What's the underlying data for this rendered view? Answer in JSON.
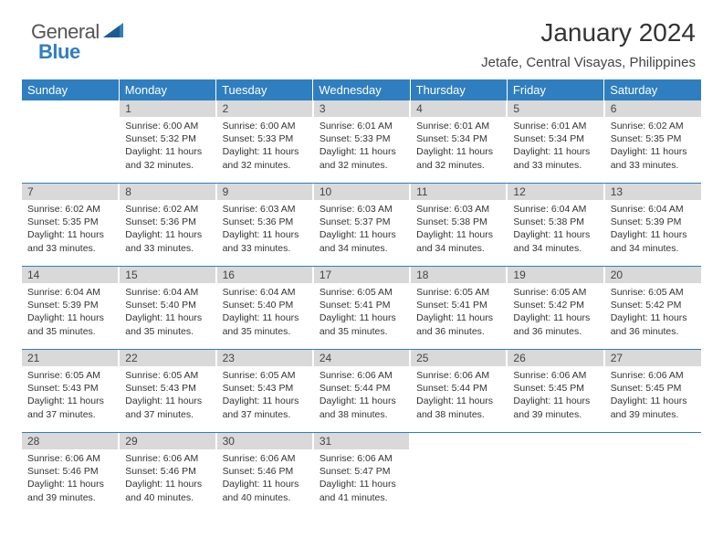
{
  "logo": {
    "word1": "General",
    "word2": "Blue"
  },
  "header": {
    "title": "January 2024",
    "subtitle": "Jetafe, Central Visayas, Philippines"
  },
  "colors": {
    "brand": "#2f7ec0",
    "day_bg": "#d9d9d9",
    "text": "#333333",
    "background": "#ffffff"
  },
  "day_names": [
    "Sunday",
    "Monday",
    "Tuesday",
    "Wednesday",
    "Thursday",
    "Friday",
    "Saturday"
  ],
  "weeks": [
    [
      {
        "n": "",
        "lines": []
      },
      {
        "n": "1",
        "lines": [
          "Sunrise: 6:00 AM",
          "Sunset: 5:32 PM",
          "Daylight: 11 hours and 32 minutes."
        ]
      },
      {
        "n": "2",
        "lines": [
          "Sunrise: 6:00 AM",
          "Sunset: 5:33 PM",
          "Daylight: 11 hours and 32 minutes."
        ]
      },
      {
        "n": "3",
        "lines": [
          "Sunrise: 6:01 AM",
          "Sunset: 5:33 PM",
          "Daylight: 11 hours and 32 minutes."
        ]
      },
      {
        "n": "4",
        "lines": [
          "Sunrise: 6:01 AM",
          "Sunset: 5:34 PM",
          "Daylight: 11 hours and 32 minutes."
        ]
      },
      {
        "n": "5",
        "lines": [
          "Sunrise: 6:01 AM",
          "Sunset: 5:34 PM",
          "Daylight: 11 hours and 33 minutes."
        ]
      },
      {
        "n": "6",
        "lines": [
          "Sunrise: 6:02 AM",
          "Sunset: 5:35 PM",
          "Daylight: 11 hours and 33 minutes."
        ]
      }
    ],
    [
      {
        "n": "7",
        "lines": [
          "Sunrise: 6:02 AM",
          "Sunset: 5:35 PM",
          "Daylight: 11 hours and 33 minutes."
        ]
      },
      {
        "n": "8",
        "lines": [
          "Sunrise: 6:02 AM",
          "Sunset: 5:36 PM",
          "Daylight: 11 hours and 33 minutes."
        ]
      },
      {
        "n": "9",
        "lines": [
          "Sunrise: 6:03 AM",
          "Sunset: 5:36 PM",
          "Daylight: 11 hours and 33 minutes."
        ]
      },
      {
        "n": "10",
        "lines": [
          "Sunrise: 6:03 AM",
          "Sunset: 5:37 PM",
          "Daylight: 11 hours and 34 minutes."
        ]
      },
      {
        "n": "11",
        "lines": [
          "Sunrise: 6:03 AM",
          "Sunset: 5:38 PM",
          "Daylight: 11 hours and 34 minutes."
        ]
      },
      {
        "n": "12",
        "lines": [
          "Sunrise: 6:04 AM",
          "Sunset: 5:38 PM",
          "Daylight: 11 hours and 34 minutes."
        ]
      },
      {
        "n": "13",
        "lines": [
          "Sunrise: 6:04 AM",
          "Sunset: 5:39 PM",
          "Daylight: 11 hours and 34 minutes."
        ]
      }
    ],
    [
      {
        "n": "14",
        "lines": [
          "Sunrise: 6:04 AM",
          "Sunset: 5:39 PM",
          "Daylight: 11 hours and 35 minutes."
        ]
      },
      {
        "n": "15",
        "lines": [
          "Sunrise: 6:04 AM",
          "Sunset: 5:40 PM",
          "Daylight: 11 hours and 35 minutes."
        ]
      },
      {
        "n": "16",
        "lines": [
          "Sunrise: 6:04 AM",
          "Sunset: 5:40 PM",
          "Daylight: 11 hours and 35 minutes."
        ]
      },
      {
        "n": "17",
        "lines": [
          "Sunrise: 6:05 AM",
          "Sunset: 5:41 PM",
          "Daylight: 11 hours and 35 minutes."
        ]
      },
      {
        "n": "18",
        "lines": [
          "Sunrise: 6:05 AM",
          "Sunset: 5:41 PM",
          "Daylight: 11 hours and 36 minutes."
        ]
      },
      {
        "n": "19",
        "lines": [
          "Sunrise: 6:05 AM",
          "Sunset: 5:42 PM",
          "Daylight: 11 hours and 36 minutes."
        ]
      },
      {
        "n": "20",
        "lines": [
          "Sunrise: 6:05 AM",
          "Sunset: 5:42 PM",
          "Daylight: 11 hours and 36 minutes."
        ]
      }
    ],
    [
      {
        "n": "21",
        "lines": [
          "Sunrise: 6:05 AM",
          "Sunset: 5:43 PM",
          "Daylight: 11 hours and 37 minutes."
        ]
      },
      {
        "n": "22",
        "lines": [
          "Sunrise: 6:05 AM",
          "Sunset: 5:43 PM",
          "Daylight: 11 hours and 37 minutes."
        ]
      },
      {
        "n": "23",
        "lines": [
          "Sunrise: 6:05 AM",
          "Sunset: 5:43 PM",
          "Daylight: 11 hours and 37 minutes."
        ]
      },
      {
        "n": "24",
        "lines": [
          "Sunrise: 6:06 AM",
          "Sunset: 5:44 PM",
          "Daylight: 11 hours and 38 minutes."
        ]
      },
      {
        "n": "25",
        "lines": [
          "Sunrise: 6:06 AM",
          "Sunset: 5:44 PM",
          "Daylight: 11 hours and 38 minutes."
        ]
      },
      {
        "n": "26",
        "lines": [
          "Sunrise: 6:06 AM",
          "Sunset: 5:45 PM",
          "Daylight: 11 hours and 39 minutes."
        ]
      },
      {
        "n": "27",
        "lines": [
          "Sunrise: 6:06 AM",
          "Sunset: 5:45 PM",
          "Daylight: 11 hours and 39 minutes."
        ]
      }
    ],
    [
      {
        "n": "28",
        "lines": [
          "Sunrise: 6:06 AM",
          "Sunset: 5:46 PM",
          "Daylight: 11 hours and 39 minutes."
        ]
      },
      {
        "n": "29",
        "lines": [
          "Sunrise: 6:06 AM",
          "Sunset: 5:46 PM",
          "Daylight: 11 hours and 40 minutes."
        ]
      },
      {
        "n": "30",
        "lines": [
          "Sunrise: 6:06 AM",
          "Sunset: 5:46 PM",
          "Daylight: 11 hours and 40 minutes."
        ]
      },
      {
        "n": "31",
        "lines": [
          "Sunrise: 6:06 AM",
          "Sunset: 5:47 PM",
          "Daylight: 11 hours and 41 minutes."
        ]
      },
      {
        "n": "",
        "lines": []
      },
      {
        "n": "",
        "lines": []
      },
      {
        "n": "",
        "lines": []
      }
    ]
  ]
}
